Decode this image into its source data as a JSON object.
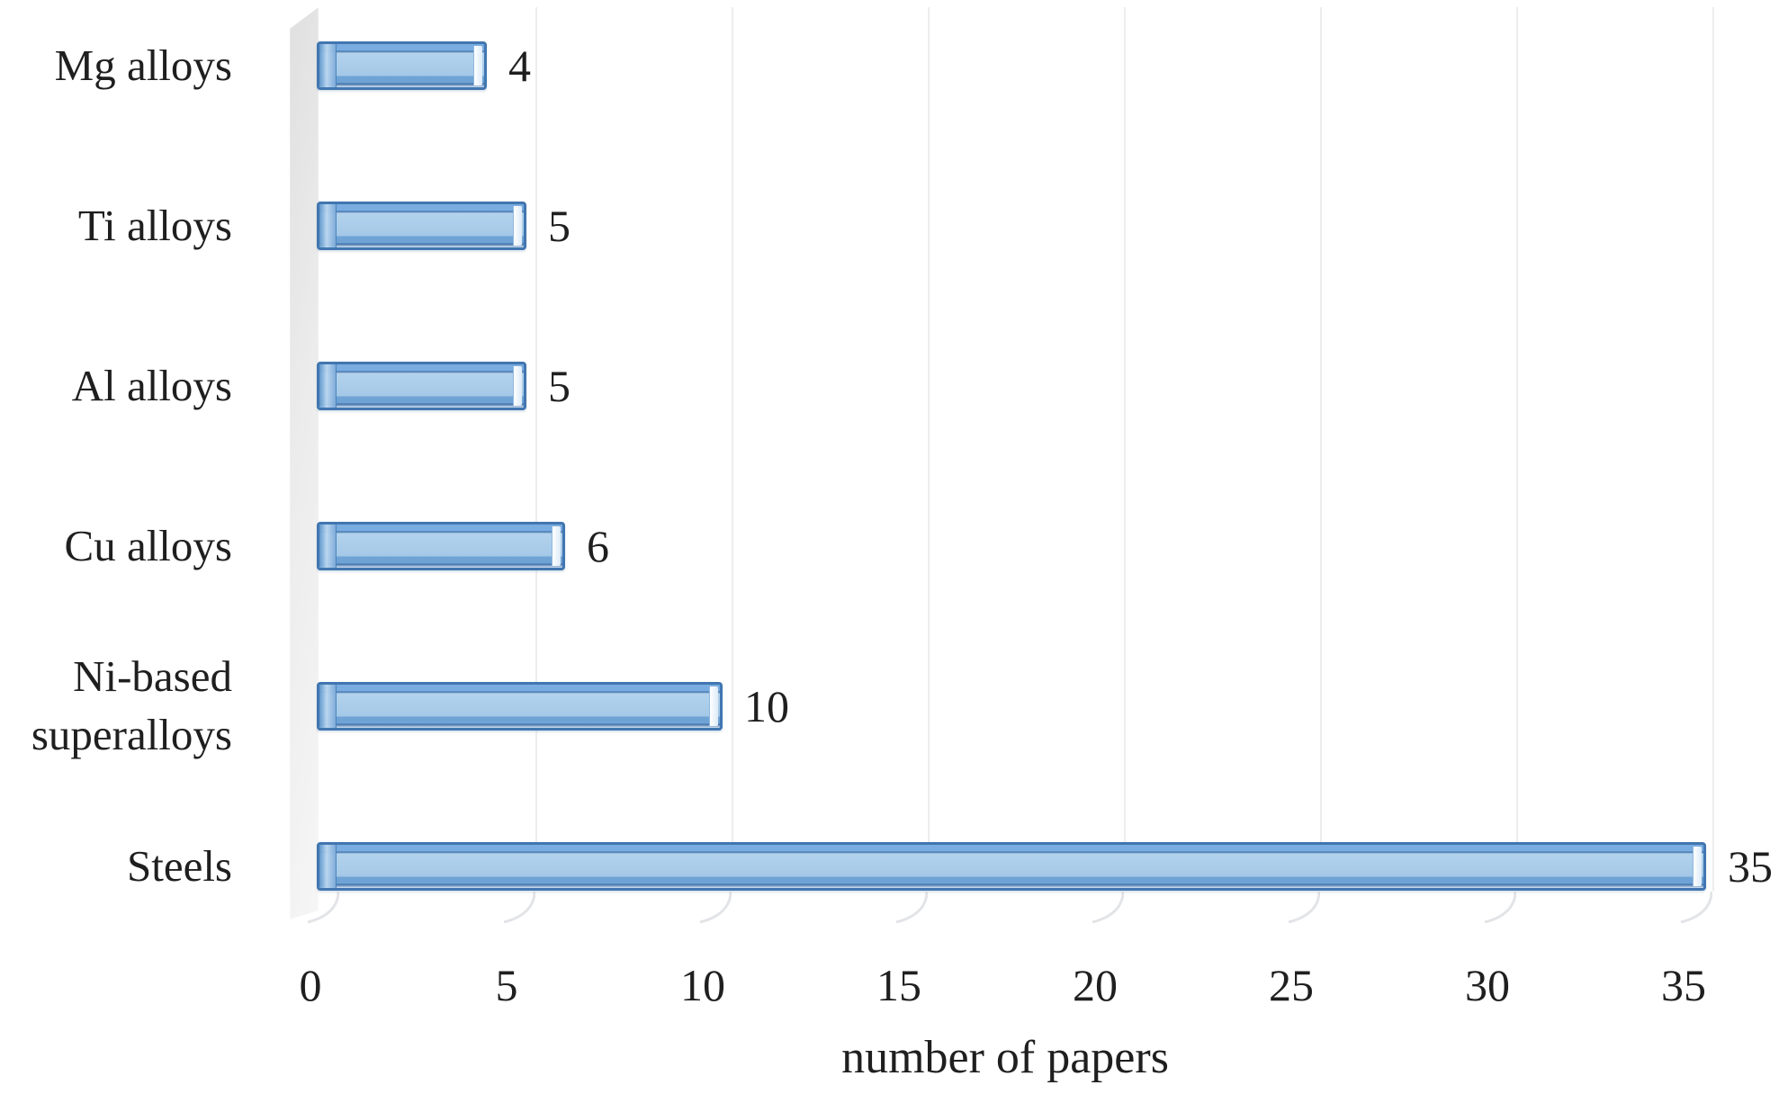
{
  "chart_data": {
    "type": "bar",
    "orientation": "horizontal",
    "style": "3d-cylinder-excel",
    "categories": [
      "Mg alloys",
      "Ti alloys",
      "Al alloys",
      "Cu alloys",
      "Ni-based\nsuperalloys",
      "Steels"
    ],
    "values": [
      4,
      5,
      5,
      6,
      10,
      35
    ],
    "data_labels": [
      "4",
      "5",
      "5",
      "6",
      "10",
      "35"
    ],
    "title": "",
    "xlabel": "number of papers",
    "ylabel": "",
    "xticks": [
      0,
      5,
      10,
      15,
      20,
      25,
      30,
      35
    ],
    "xlim": [
      0,
      35
    ],
    "grid": true,
    "legend": false,
    "colors": {
      "bar_fill": "#a9cce9",
      "bar_fill_band": "#79ace0",
      "bar_border": "#4176b0",
      "gridline": "#ededed",
      "wall": "#e8e8e8",
      "text": "#1f1f1f"
    }
  }
}
